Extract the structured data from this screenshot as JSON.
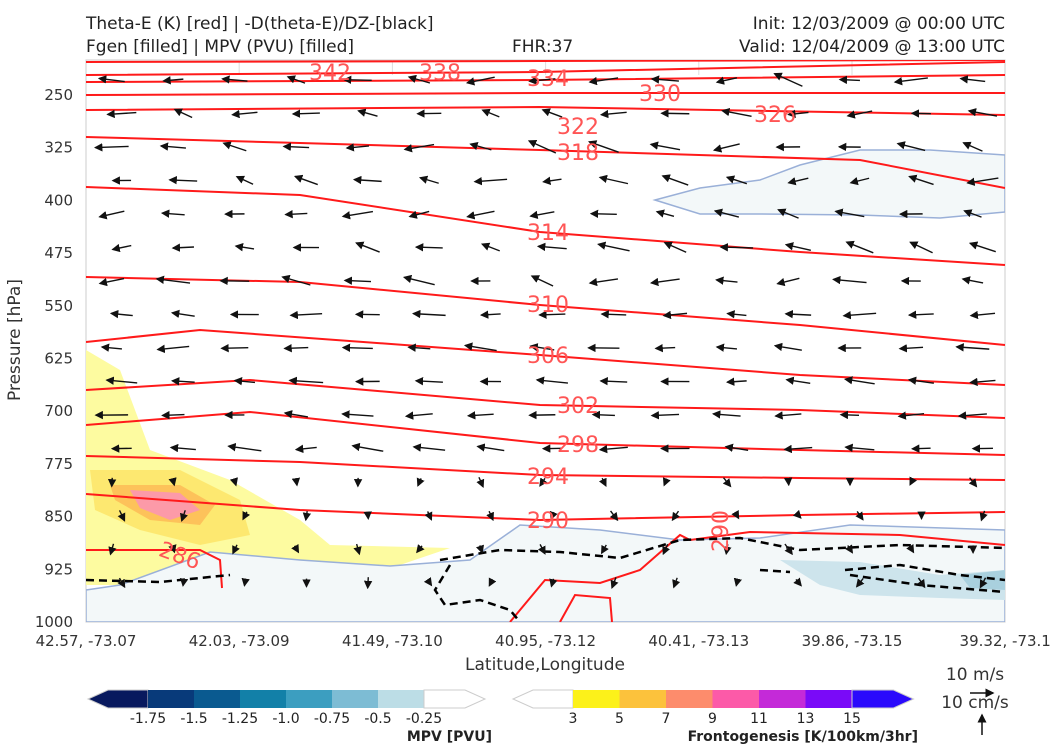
{
  "title_left_1": "Theta-E (K) [red] | -D(theta-E)/DZ-[black]",
  "title_left_2": "Fgen [filled] | MPV (PVU) [filled]",
  "fhr": "FHR:37",
  "init": "Init: 12/03/2009 @ 00:00 UTC",
  "valid": "Valid: 12/04/2009 @ 13:00 UTC",
  "chart_data": {
    "type": "cross-section",
    "ylabel": "Pressure [hPa]",
    "xlabel": "Latitude,Longitude",
    "yticks": [
      "250",
      "325",
      "400",
      "475",
      "550",
      "625",
      "700",
      "775",
      "850",
      "925",
      "1000"
    ],
    "xticks": [
      "42.57, -73.07",
      "42.03, -73.09",
      "41.49, -73.10",
      "40.95, -73.12",
      "40.41, -73.13",
      "39.86, -73.15",
      "39.32, -73.1"
    ],
    "theta_e_labels": [
      "342",
      "338",
      "334",
      "330",
      "326",
      "322",
      "318",
      "314",
      "310",
      "306",
      "302",
      "298",
      "294",
      "290",
      "286",
      "290"
    ],
    "mpv_colorbar": {
      "label": "MPV [PVU]",
      "ticks": [
        "-1.75",
        "-1.5",
        "-1.25",
        "-1.0",
        "-0.75",
        "-0.5",
        "-0.25"
      ],
      "colors": [
        "#08195e",
        "#083a7a",
        "#0a5a90",
        "#1280a8",
        "#3c9ec0",
        "#7dbcd4",
        "#bcdde6",
        "#ffffff"
      ]
    },
    "fgen_colorbar": {
      "label": "Frontogenesis [K/100km/3hr]",
      "ticks": [
        "3",
        "5",
        "7",
        "9",
        "11",
        "13",
        "15"
      ],
      "colors": [
        "#ffffff",
        "#fcf11a",
        "#fcc23c",
        "#fd8c6c",
        "#fc5aa8",
        "#c42ad8",
        "#7a0af8",
        "#2a0afc"
      ]
    },
    "vector_key": {
      "horizontal": "10 m/s",
      "vertical": "10 cm/s"
    }
  }
}
